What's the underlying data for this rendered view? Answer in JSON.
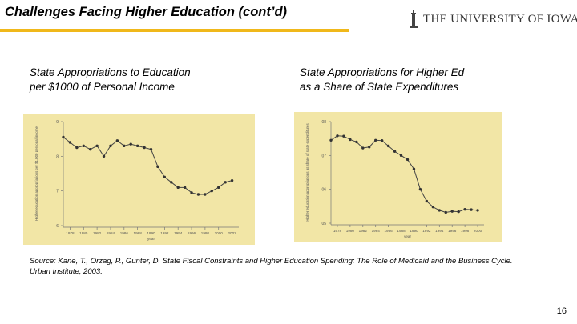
{
  "slide": {
    "title": "Challenges Facing Higher Education (cont’d)",
    "logo_text": "THE UNIVERSITY OF IOWA",
    "caption_left_line1": "State Appropriations to Education",
    "caption_left_line2": "per $1000 of Personal Income",
    "caption_right_line1": "State Appropriations for Higher Ed",
    "caption_right_line2": "as a Share of State Expenditures",
    "source": "Source: Kane, T., Orzag, P., Gunter, D. State Fiscal Constraints and Higher Education Spending: The Role of Medicaid and the Business Cycle. Urban Institute, 2003.",
    "page_number": "16"
  },
  "colors": {
    "accent": "#f0b81a",
    "chart_background": "#f2e6a6",
    "series_line": "#444444",
    "series_marker": "#333333"
  },
  "icons": [
    "university-logo-icon"
  ],
  "chart_data": [
    {
      "type": "line",
      "title": "",
      "xlabel": "year",
      "ylabel": "Higher education appropriations per $1,000 personal income",
      "xlim": [
        1977,
        2003
      ],
      "ylim": [
        6,
        9
      ],
      "x_ticks": [
        "1978",
        "1980",
        "1982",
        "1984",
        "1986",
        "1988",
        "1990",
        "1992",
        "1994",
        "1996",
        "1998",
        "2000",
        "2002"
      ],
      "y_ticks": [
        "6",
        "7",
        "8",
        "9"
      ],
      "grid": false,
      "x": [
        1977,
        1978,
        1979,
        1980,
        1981,
        1982,
        1983,
        1984,
        1985,
        1986,
        1987,
        1988,
        1989,
        1990,
        1991,
        1992,
        1993,
        1994,
        1995,
        1996,
        1997,
        1998,
        1999,
        2000,
        2001,
        2002
      ],
      "series": [
        {
          "values": [
            8.55,
            8.4,
            8.25,
            8.3,
            8.2,
            8.3,
            8.0,
            8.3,
            8.45,
            8.3,
            8.35,
            8.3,
            8.25,
            8.2,
            7.7,
            7.4,
            7.25,
            7.1,
            7.1,
            6.95,
            6.9,
            6.9,
            7.0,
            7.1,
            7.25,
            7.3
          ]
        }
      ]
    },
    {
      "type": "line",
      "title": "",
      "xlabel": "year",
      "ylabel": "Higher education appropriations as share of state expenditures",
      "xlim": [
        1977,
        2001
      ],
      "ylim": [
        0.05,
        0.08
      ],
      "x_ticks": [
        "1978",
        "1980",
        "1982",
        "1984",
        "1986",
        "1988",
        "1990",
        "1992",
        "1994",
        "1996",
        "1998",
        "2000"
      ],
      "y_ticks": [
        "05",
        "06",
        "07",
        "08"
      ],
      "grid": false,
      "x": [
        1977,
        1978,
        1979,
        1980,
        1981,
        1982,
        1983,
        1984,
        1985,
        1986,
        1987,
        1988,
        1989,
        1990,
        1991,
        1992,
        1993,
        1994,
        1995,
        1996,
        1997,
        1998,
        1999,
        2000
      ],
      "series": [
        {
          "values": [
            0.0745,
            0.0758,
            0.0757,
            0.0747,
            0.074,
            0.0722,
            0.0725,
            0.0745,
            0.0744,
            0.0728,
            0.0712,
            0.07,
            0.0688,
            0.066,
            0.06,
            0.0565,
            0.0548,
            0.0538,
            0.0532,
            0.0535,
            0.0534,
            0.0541,
            0.054,
            0.0538
          ]
        }
      ]
    }
  ]
}
